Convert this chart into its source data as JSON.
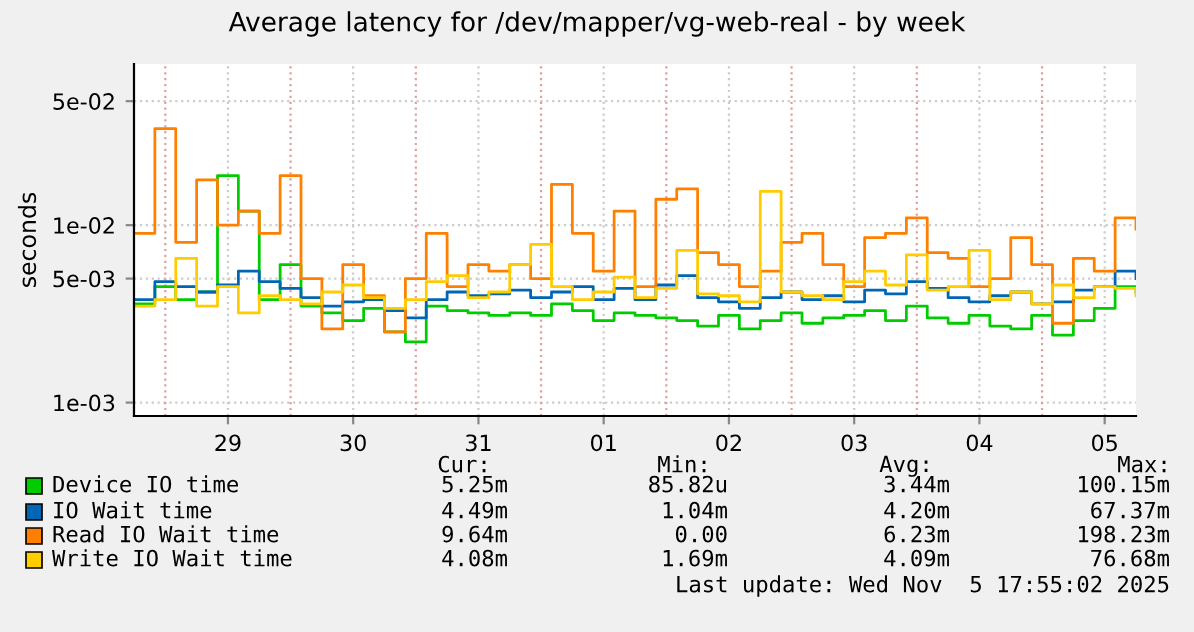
{
  "chart_data": {
    "type": "step",
    "title": "Average latency for /dev/mapper/vg-web-real - by week",
    "ylabel": "seconds",
    "x": [
      "2025-10-28T18:00",
      "2025-10-28T22:00",
      "2025-10-29T02:00",
      "2025-10-29T06:00",
      "2025-10-29T10:00",
      "2025-10-29T14:00",
      "2025-10-29T18:00",
      "2025-10-29T22:00",
      "2025-10-30T02:00",
      "2025-10-30T06:00",
      "2025-10-30T10:00",
      "2025-10-30T14:00",
      "2025-10-30T18:00",
      "2025-10-30T22:00",
      "2025-10-31T02:00",
      "2025-10-31T06:00",
      "2025-10-31T10:00",
      "2025-10-31T14:00",
      "2025-10-31T18:00",
      "2025-10-31T22:00",
      "2025-11-01T02:00",
      "2025-11-01T06:00",
      "2025-11-01T10:00",
      "2025-11-01T14:00",
      "2025-11-01T18:00",
      "2025-11-01T22:00",
      "2025-11-02T02:00",
      "2025-11-02T06:00",
      "2025-11-02T10:00",
      "2025-11-02T14:00",
      "2025-11-02T18:00",
      "2025-11-02T22:00",
      "2025-11-03T02:00",
      "2025-11-03T06:00",
      "2025-11-03T10:00",
      "2025-11-03T14:00",
      "2025-11-03T18:00",
      "2025-11-03T22:00",
      "2025-11-04T02:00",
      "2025-11-04T06:00",
      "2025-11-04T10:00",
      "2025-11-04T14:00",
      "2025-11-04T18:00",
      "2025-11-04T22:00",
      "2025-11-05T02:00",
      "2025-11-05T06:00",
      "2025-11-05T10:00",
      "2025-11-05T14:00",
      "2025-11-05T18:00"
    ],
    "series": [
      {
        "name": "Device IO time",
        "color": "#00cc00",
        "values": [
          0.0036,
          0.0045,
          0.0038,
          0.0042,
          0.019,
          0.012,
          0.0038,
          0.006,
          0.0035,
          0.0032,
          0.0029,
          0.0034,
          0.0025,
          0.0022,
          0.0035,
          0.0033,
          0.0032,
          0.0031,
          0.0032,
          0.0031,
          0.0036,
          0.0033,
          0.0029,
          0.0032,
          0.0031,
          0.003,
          0.0029,
          0.0027,
          0.0031,
          0.0026,
          0.0029,
          0.0032,
          0.0028,
          0.003,
          0.0031,
          0.0033,
          0.0029,
          0.0035,
          0.003,
          0.0028,
          0.0031,
          0.0027,
          0.0026,
          0.0031,
          0.0024,
          0.0029,
          0.0034,
          0.0045,
          0.0042
        ]
      },
      {
        "name": "IO Wait time",
        "color": "#0066b3",
        "values": [
          0.0038,
          0.0048,
          0.0045,
          0.0042,
          0.0046,
          0.0055,
          0.0048,
          0.0044,
          0.0039,
          0.0035,
          0.0037,
          0.0038,
          0.0033,
          0.003,
          0.0038,
          0.0042,
          0.004,
          0.0041,
          0.0043,
          0.0039,
          0.0042,
          0.0045,
          0.0038,
          0.0044,
          0.0038,
          0.0046,
          0.0052,
          0.0039,
          0.0037,
          0.0034,
          0.0039,
          0.0042,
          0.0038,
          0.004,
          0.0037,
          0.0043,
          0.0041,
          0.0048,
          0.0044,
          0.0039,
          0.0037,
          0.004,
          0.0042,
          0.0036,
          0.0037,
          0.0043,
          0.0045,
          0.0055,
          0.005
        ]
      },
      {
        "name": "Read IO Wait time",
        "color": "#ff8000",
        "values": [
          0.009,
          0.035,
          0.008,
          0.018,
          0.01,
          0.012,
          0.009,
          0.019,
          0.005,
          0.0026,
          0.006,
          0.004,
          0.0025,
          0.005,
          0.009,
          0.0045,
          0.006,
          0.0055,
          0.006,
          0.005,
          0.017,
          0.009,
          0.0055,
          0.012,
          0.0045,
          0.014,
          0.016,
          0.007,
          0.006,
          0.0045,
          0.0055,
          0.008,
          0.009,
          0.006,
          0.0045,
          0.0085,
          0.009,
          0.011,
          0.007,
          0.0065,
          0.0045,
          0.005,
          0.0085,
          0.006,
          0.0028,
          0.0065,
          0.0055,
          0.011,
          0.0095
        ]
      },
      {
        "name": "Write IO Wait time",
        "color": "#ffcc00",
        "values": [
          0.0035,
          0.0038,
          0.0065,
          0.0035,
          0.0045,
          0.0032,
          0.004,
          0.0038,
          0.0036,
          0.0042,
          0.0046,
          0.0039,
          0.0034,
          0.0038,
          0.0048,
          0.0052,
          0.0039,
          0.0042,
          0.006,
          0.0078,
          0.0045,
          0.0038,
          0.0042,
          0.0051,
          0.0039,
          0.0044,
          0.0072,
          0.0041,
          0.004,
          0.0037,
          0.0155,
          0.0042,
          0.004,
          0.0038,
          0.0048,
          0.0055,
          0.0046,
          0.0068,
          0.0043,
          0.0045,
          0.0072,
          0.0038,
          0.0042,
          0.0036,
          0.0046,
          0.0039,
          0.0045,
          0.0044,
          0.004
        ]
      }
    ],
    "log": "y",
    "xlim": [
      "2025-10-28T18:00",
      "2025-11-05T18:00"
    ],
    "xticks": [
      {
        "value": "2025-10-29T12:00",
        "label": "29"
      },
      {
        "value": "2025-10-30T12:00",
        "label": "30"
      },
      {
        "value": "2025-10-31T12:00",
        "label": "31"
      },
      {
        "value": "2025-11-01T12:00",
        "label": "01"
      },
      {
        "value": "2025-11-02T12:00",
        "label": "02"
      },
      {
        "value": "2025-11-03T12:00",
        "label": "03"
      },
      {
        "value": "2025-11-04T12:00",
        "label": "04"
      },
      {
        "value": "2025-11-05T12:00",
        "label": "05"
      }
    ],
    "ylim": [
      0.00084,
      0.081
    ],
    "yticks": [
      {
        "value": 0.001,
        "label": "1e-03"
      },
      {
        "value": 0.005,
        "label": "5e-03"
      },
      {
        "value": 0.01,
        "label": "1e-02"
      },
      {
        "value": 0.05,
        "label": "5e-02"
      }
    ],
    "ref_lines": [
      {
        "axis": "x",
        "value": "2025-10-29",
        "color": "#e0a0a0",
        "line_style": "dotted"
      },
      {
        "axis": "x",
        "value": "2025-10-30",
        "color": "#e0a0a0",
        "line_style": "dotted"
      },
      {
        "axis": "x",
        "value": "2025-10-31",
        "color": "#e0a0a0",
        "line_style": "dotted"
      },
      {
        "axis": "x",
        "value": "2025-11-01",
        "color": "#e0a0a0",
        "line_style": "dotted"
      },
      {
        "axis": "x",
        "value": "2025-11-02",
        "color": "#e0a0a0",
        "line_style": "dotted"
      },
      {
        "axis": "x",
        "value": "2025-11-03",
        "color": "#e0a0a0",
        "line_style": "dotted"
      },
      {
        "axis": "x",
        "value": "2025-11-04",
        "color": "#e0a0a0",
        "line_style": "dotted"
      },
      {
        "axis": "x",
        "value": "2025-11-05",
        "color": "#e0a0a0",
        "line_style": "dotted"
      }
    ],
    "grid": true,
    "legend": "bottom",
    "line_style": "solid",
    "annotations": [
      "Cur:",
      "Min:",
      "Avg:",
      "Max:",
      "5.25m",
      "85.82u",
      "3.44m",
      "100.15m",
      "4.49m",
      "1.04m",
      "4.20m",
      "67.37m",
      "9.64m",
      "0.00",
      "6.23m",
      "198.23m",
      "4.08m",
      "1.69m",
      "4.09m",
      "76.68m",
      "Last update: Wed Nov  5 17:55:02 2025"
    ]
  }
}
